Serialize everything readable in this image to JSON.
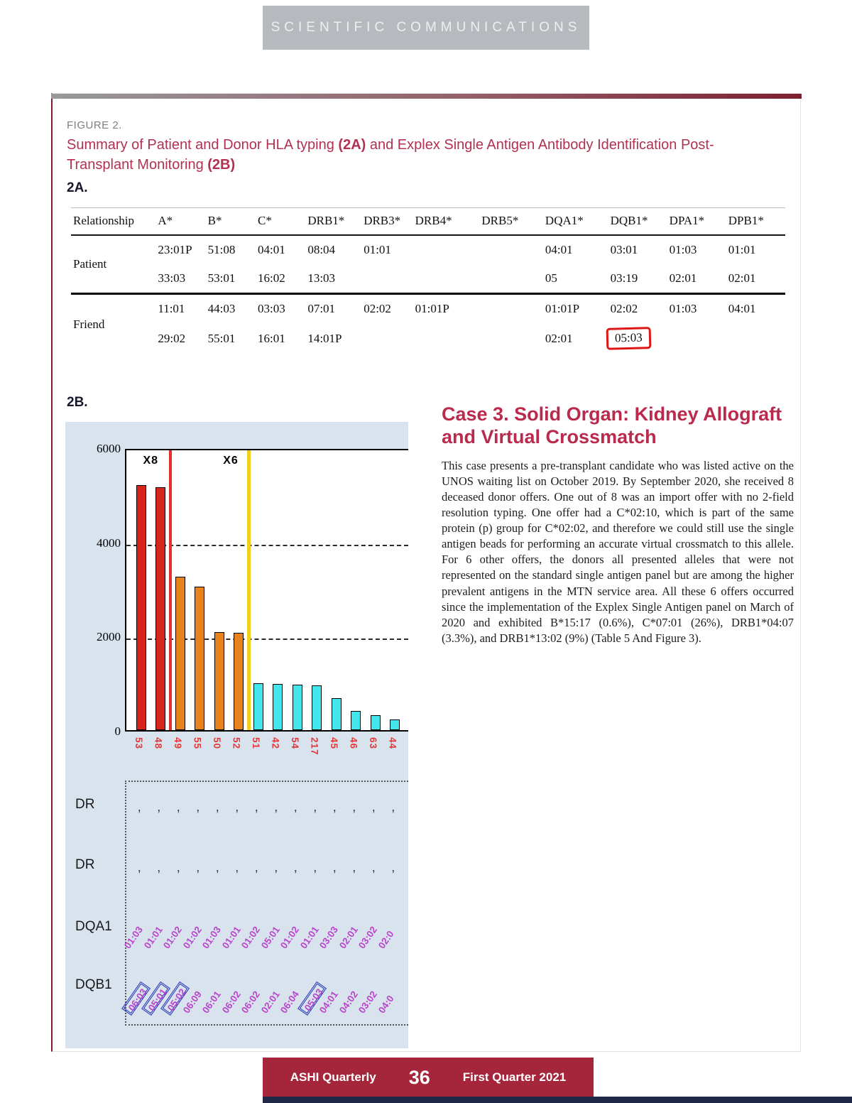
{
  "banner": {
    "text": "SCIENTIFIC COMMUNICATIONS"
  },
  "figure": {
    "label": "FIGURE 2.",
    "caption": [
      {
        "text": "Summary of Patient and Donor HLA typing ",
        "bold": false
      },
      {
        "text": "(2A)",
        "bold": true
      },
      {
        "text": " and Explex Single Antigen Antibody Identification Post-Transplant Monitoring ",
        "bold": false
      },
      {
        "text": "(2B)",
        "bold": true
      }
    ],
    "label_2a": "2A.",
    "label_2b": "2B."
  },
  "table_2a": {
    "columns": [
      "Relationship",
      "A*",
      "B*",
      "C*",
      "DRB1*",
      "DRB3*",
      "DRB4*",
      "DRB5*",
      "DQA1*",
      "DQB1*",
      "DPA1*",
      "DPB1*"
    ],
    "groups": [
      {
        "relationship": "Patient",
        "rows": [
          [
            "23:01P",
            "51:08",
            "04:01",
            "08:04",
            "01:01",
            "",
            "",
            "04:01",
            "03:01",
            "01:03",
            "01:01"
          ],
          [
            "33:03",
            "53:01",
            "16:02",
            "13:03",
            "",
            "",
            "",
            "05",
            "03:19",
            "02:01",
            "02:01"
          ]
        ]
      },
      {
        "relationship": "Friend",
        "rows": [
          [
            "11:01",
            "44:03",
            "03:03",
            "07:01",
            "02:02",
            "01:01P",
            "",
            "01:01P",
            "02:02",
            "01:03",
            "04:01"
          ],
          [
            "29:02",
            "55:01",
            "16:01",
            "14:01P",
            "",
            "",
            "",
            "02:01",
            "05:03",
            "",
            ""
          ]
        ],
        "highlight": {
          "row": 1,
          "col": 8
        }
      }
    ]
  },
  "chart_data": {
    "type": "bar",
    "title": "Explex Single Antigen Antibody Identification Post-Transplant Monitoring",
    "categories": [
      "53",
      "48",
      "49",
      "55",
      "50",
      "52",
      "51",
      "42",
      "54",
      "217",
      "45",
      "46",
      "63",
      "44"
    ],
    "values": [
      5200,
      5150,
      3250,
      3050,
      2080,
      2070,
      1000,
      980,
      960,
      950,
      680,
      400,
      320,
      230
    ],
    "bar_colors": [
      "red",
      "red",
      "orange",
      "orange",
      "orange",
      "orange",
      "cyan",
      "cyan",
      "cyan",
      "cyan",
      "cyan",
      "cyan",
      "cyan",
      "cyan"
    ],
    "colors": {
      "red": "#d6261c",
      "orange": "#e8821c",
      "cyan": "#44e6ee"
    },
    "ylim": [
      0,
      6000
    ],
    "yticks": [
      0,
      2000,
      4000,
      6000
    ],
    "gridlines_dashed": [
      2000,
      4000
    ],
    "annotations": [
      {
        "text": "X8",
        "slot": 0.6
      },
      {
        "text": "X6",
        "slot": 4.7
      }
    ],
    "vlines": [
      {
        "after_bar": 1,
        "color": "#e62e2e",
        "width": 4
      },
      {
        "after_bar": 5,
        "color": "#f2cf1d",
        "width": 5
      }
    ],
    "rows": [
      {
        "label": "DR",
        "type": "ditto",
        "symbol": ",",
        "count": 14
      },
      {
        "label": "DR",
        "type": "ditto",
        "symbol": ",",
        "count": 14
      },
      {
        "label": "DQA1",
        "type": "alleles",
        "values": [
          "01:03",
          "01:01",
          "01:02",
          "01:02",
          "01:03",
          "01:01",
          "01:02",
          "05:01",
          "01:02",
          "01:01",
          "03:03",
          "02:01",
          "03:02",
          "02:0"
        ],
        "boxed": []
      },
      {
        "label": "DQB1",
        "type": "alleles",
        "values": [
          "06:03",
          "05:01",
          "05:02",
          "06:09",
          "06:01",
          "06:02",
          "06:02",
          "02:01",
          "06:04",
          "05:03",
          "04:01",
          "04:02",
          "03:02",
          "04:0"
        ],
        "boxed": [
          0,
          1,
          2,
          9
        ]
      }
    ]
  },
  "case3": {
    "title": "Case 3. Solid Organ: Kidney Allograft and Virtual Crossmatch",
    "body": "This case presents a pre-transplant candidate who was listed active on the UNOS waiting list on October 2019. By September 2020, she received 8 deceased donor offers. One out of 8 was an import offer with no 2-field resolution typing. One offer had a C*02:10, which is part of the same protein (p) group for C*02:02, and therefore we could still use the single antigen beads for performing an accurate virtual crossmatch to this allele. For 6 other offers, the donors all presented alleles that were not represented on the standard single antigen panel but are among the higher prevalent antigens in the MTN service area. All these 6 offers occurred since the implementation of the Explex Single Antigen panel on March of 2020 and exhibited B*15:17 (0.6%), C*07:01 (26%), DRB1*04:07 (3.3%), and DRB1*13:02 (9%) (Table 5 And Figure 3)."
  },
  "footer": {
    "journal": "ASHI Quarterly",
    "page_number": "36",
    "issue": "First Quarter 2021"
  }
}
